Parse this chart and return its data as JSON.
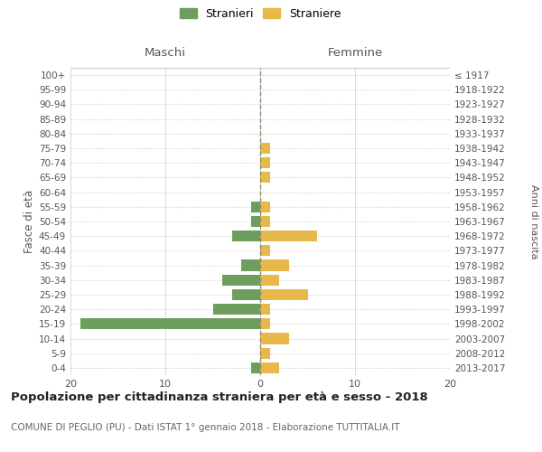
{
  "age_groups": [
    "0-4",
    "5-9",
    "10-14",
    "15-19",
    "20-24",
    "25-29",
    "30-34",
    "35-39",
    "40-44",
    "45-49",
    "50-54",
    "55-59",
    "60-64",
    "65-69",
    "70-74",
    "75-79",
    "80-84",
    "85-89",
    "90-94",
    "95-99",
    "100+"
  ],
  "birth_years": [
    "2013-2017",
    "2008-2012",
    "2003-2007",
    "1998-2002",
    "1993-1997",
    "1988-1992",
    "1983-1987",
    "1978-1982",
    "1973-1977",
    "1968-1972",
    "1963-1967",
    "1958-1962",
    "1953-1957",
    "1948-1952",
    "1943-1947",
    "1938-1942",
    "1933-1937",
    "1928-1932",
    "1923-1927",
    "1918-1922",
    "≤ 1917"
  ],
  "maschi": [
    1,
    0,
    0,
    19,
    5,
    3,
    4,
    2,
    0,
    3,
    1,
    1,
    0,
    0,
    0,
    0,
    0,
    0,
    0,
    0,
    0
  ],
  "femmine": [
    2,
    1,
    3,
    1,
    1,
    5,
    2,
    3,
    1,
    6,
    1,
    1,
    0,
    1,
    1,
    1,
    0,
    0,
    0,
    0,
    0
  ],
  "maschi_color": "#6d9e5e",
  "femmine_color": "#e8b84b",
  "dashed_line_color": "#8b8b6e",
  "grid_color": "#cccccc",
  "grid_linestyle": "dotted",
  "background_color": "#ffffff",
  "title": "Popolazione per cittadinanza straniera per età e sesso - 2018",
  "subtitle": "COMUNE DI PEGLIO (PU) - Dati ISTAT 1° gennaio 2018 - Elaborazione TUTTITALIA.IT",
  "xlabel_left": "Maschi",
  "xlabel_right": "Femmine",
  "ylabel_left": "Fasce di età",
  "ylabel_right": "Anni di nascita",
  "legend_maschi": "Stranieri",
  "legend_femmine": "Straniere",
  "xlim": 20
}
